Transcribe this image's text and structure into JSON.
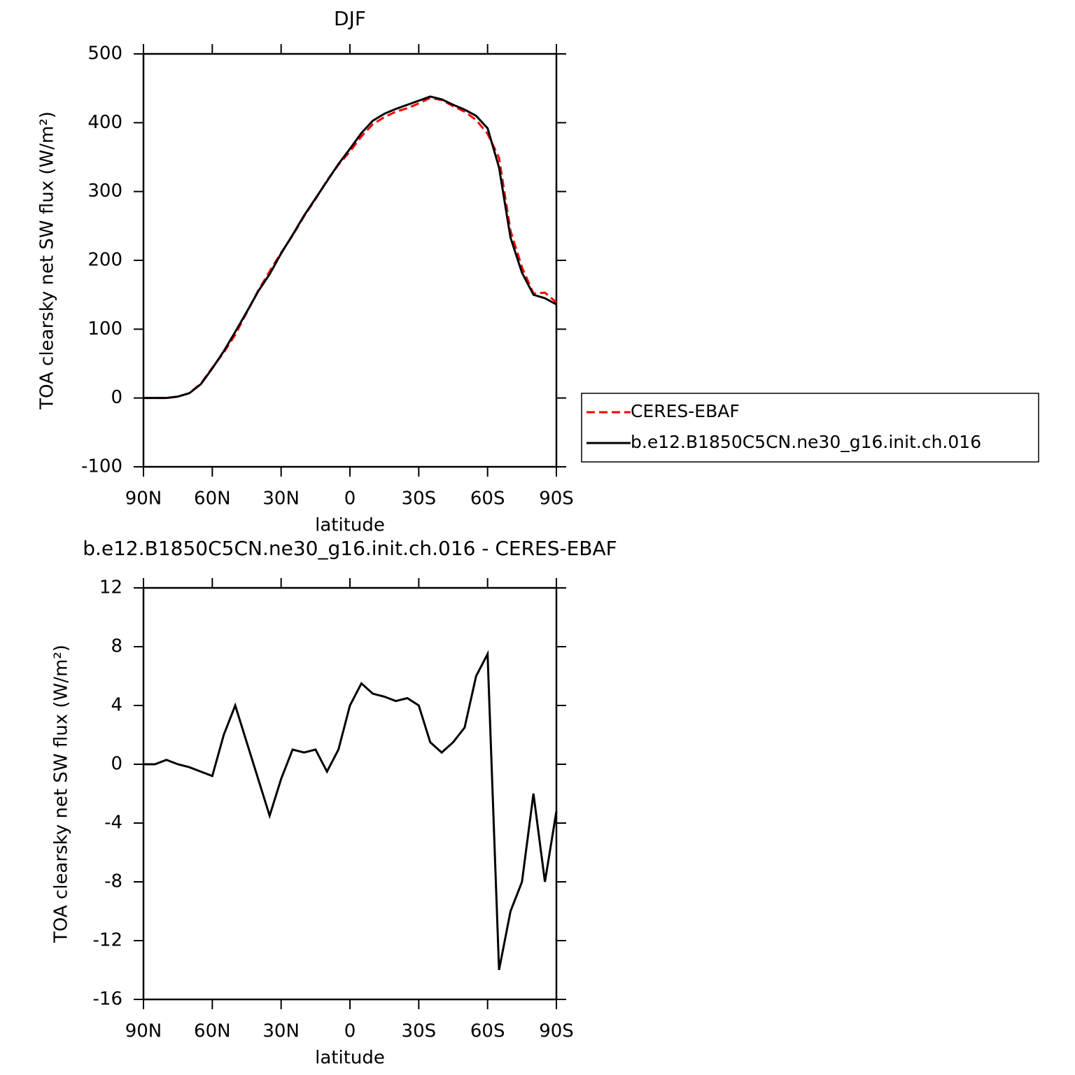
{
  "chart_data": [
    {
      "type": "line",
      "title": "DJF",
      "xlabel": "latitude",
      "ylabel": "TOA clearsky net SW flux (W/m²)",
      "x": [
        90,
        85,
        80,
        75,
        70,
        65,
        60,
        55,
        50,
        45,
        40,
        35,
        30,
        25,
        20,
        15,
        10,
        5,
        0,
        -5,
        -10,
        -15,
        -20,
        -25,
        -30,
        -35,
        -40,
        -45,
        -50,
        -55,
        -60,
        -65,
        -70,
        -75,
        -80,
        -85,
        -90
      ],
      "xlim": [
        90,
        -90
      ],
      "xticks": [
        {
          "value": 90,
          "label": "90N"
        },
        {
          "value": 60,
          "label": "60N"
        },
        {
          "value": 30,
          "label": "30N"
        },
        0,
        {
          "value": -30,
          "label": "30S"
        },
        {
          "value": -60,
          "label": "60S"
        },
        {
          "value": -90,
          "label": "90S"
        }
      ],
      "ylim": [
        -100,
        500
      ],
      "yticks": [
        -100,
        0,
        100,
        200,
        300,
        400,
        500
      ],
      "legend": "right",
      "series": [
        {
          "name": "CERES-EBAF",
          "color": "#ff0000",
          "style": "dashed",
          "values": [
            0,
            0,
            0,
            2,
            7,
            21,
            44,
            66,
            92,
            124,
            156,
            184,
            211,
            236,
            264,
            289,
            316,
            339,
            358,
            380,
            398,
            408,
            416,
            421,
            428,
            436,
            433,
            424,
            416,
            404,
            384,
            349,
            243,
            190,
            152,
            153,
            139
          ]
        },
        {
          "name": "b.e12.B1850C5CN.ne30_g16.init.ch.016",
          "color": "#000000",
          "style": "solid",
          "values": [
            0,
            0,
            0,
            2,
            7,
            20,
            43,
            68,
            96,
            125,
            155,
            180,
            210,
            237,
            265,
            290,
            315,
            340,
            362,
            385,
            403,
            413,
            420,
            426,
            432,
            438,
            434,
            426,
            419,
            410,
            392,
            335,
            233,
            182,
            150,
            145,
            136
          ]
        }
      ]
    },
    {
      "type": "line",
      "title": "b.e12.B1850C5CN.ne30_g16.init.ch.016 - CERES-EBAF",
      "xlabel": "latitude",
      "ylabel": "TOA clearsky net SW flux (W/m²)",
      "x": [
        90,
        85,
        80,
        75,
        70,
        65,
        60,
        55,
        50,
        45,
        40,
        35,
        30,
        25,
        20,
        15,
        10,
        5,
        0,
        -5,
        -10,
        -15,
        -20,
        -25,
        -30,
        -35,
        -40,
        -45,
        -50,
        -55,
        -60,
        -65,
        -70,
        -75,
        -80,
        -85,
        -90
      ],
      "xlim": [
        90,
        -90
      ],
      "xticks": [
        {
          "value": 90,
          "label": "90N"
        },
        {
          "value": 60,
          "label": "60N"
        },
        {
          "value": 30,
          "label": "30N"
        },
        0,
        {
          "value": -30,
          "label": "30S"
        },
        {
          "value": -60,
          "label": "60S"
        },
        {
          "value": -90,
          "label": "90S"
        }
      ],
      "ylim": [
        -16,
        12
      ],
      "yticks": [
        -16,
        -12,
        -8,
        -4,
        0,
        4,
        8,
        12
      ],
      "color": "#000000",
      "values": [
        0,
        0,
        0.3,
        0,
        -0.2,
        -0.5,
        -0.8,
        2,
        4,
        1.5,
        -1,
        -3.5,
        -1,
        1,
        0.8,
        1,
        -0.5,
        1,
        4,
        5.5,
        4.8,
        4.6,
        4.3,
        4.5,
        4,
        1.5,
        0.8,
        1.5,
        2.5,
        6,
        7.5,
        -14,
        -10,
        -8,
        -2,
        -8,
        -3.2
      ]
    }
  ]
}
